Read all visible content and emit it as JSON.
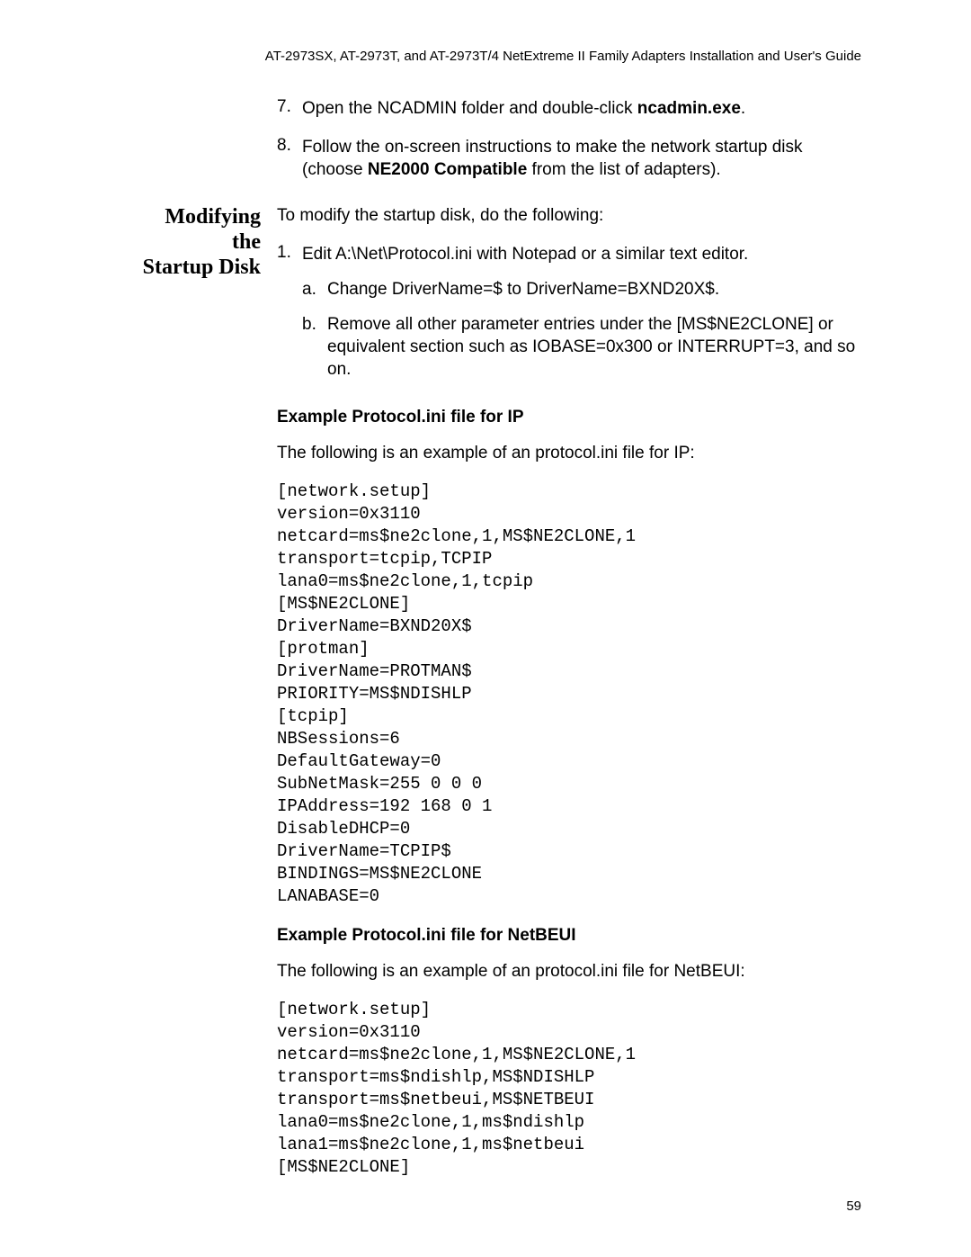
{
  "header": "AT-2973SX, AT-2973T, and AT-2973T/4 NetExtreme II Family Adapters Installation and User's Guide",
  "page_number": "59",
  "steps_initial": [
    {
      "num": "7.",
      "html": "Open the NCADMIN folder and double-click <b>ncadmin.exe</b>."
    },
    {
      "num": "8.",
      "html": "Follow the on-screen instructions to make the network startup disk (choose <b>NE2000 Compatible</b> from the list of adapters)."
    }
  ],
  "margin_heading_line1": "Modifying the",
  "margin_heading_line2": "Startup Disk",
  "intro_modify": "To modify the startup disk, do the following:",
  "step1": {
    "num": "1.",
    "text": "Edit A:\\Net\\Protocol.ini with Notepad or a similar text editor.",
    "sub": [
      {
        "num": "a.",
        "text": "Change DriverName=$ to DriverName=BXND20X$."
      },
      {
        "num": "b.",
        "text": "Remove all other parameter entries under the [MS$NE2CLONE] or equivalent section such as IOBASE=0x300 or INTERRUPT=3, and so on."
      }
    ]
  },
  "example_ip": {
    "heading": "Example Protocol.ini file for IP",
    "intro": "The following is an example of an protocol.ini file for IP:",
    "code": "[network.setup]\nversion=0x3110\nnetcard=ms$ne2clone,1,MS$NE2CLONE,1\ntransport=tcpip,TCPIP\nlana0=ms$ne2clone,1,tcpip\n[MS$NE2CLONE]\nDriverName=BXND20X$\n[protman]\nDriverName=PROTMAN$\nPRIORITY=MS$NDISHLP\n[tcpip]\nNBSessions=6\nDefaultGateway=0\nSubNetMask=255 0 0 0\nIPAddress=192 168 0 1\nDisableDHCP=0\nDriverName=TCPIP$\nBINDINGS=MS$NE2CLONE\nLANABASE=0"
  },
  "example_netbeui": {
    "heading": "Example Protocol.ini file for NetBEUI",
    "intro": "The following is an example of an protocol.ini file for NetBEUI:",
    "code": "[network.setup]\nversion=0x3110\nnetcard=ms$ne2clone,1,MS$NE2CLONE,1\ntransport=ms$ndishlp,MS$NDISHLP\ntransport=ms$netbeui,MS$NETBEUI\nlana0=ms$ne2clone,1,ms$ndishlp\nlana1=ms$ne2clone,1,ms$netbeui\n[MS$NE2CLONE]"
  }
}
